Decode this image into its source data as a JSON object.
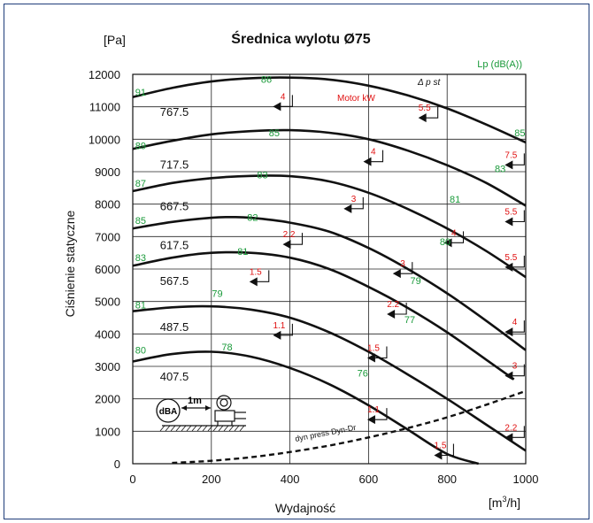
{
  "chart_data": {
    "type": "line",
    "title": "Średnica wylotu Ø75",
    "xlabel": "Wydajność",
    "ylabel": "Ciśnienie statyczne",
    "x_unit": "[m3/h]",
    "y_unit": "[Pa]",
    "xlim": [
      0,
      1000
    ],
    "ylim": [
      0,
      12000
    ],
    "x_ticks": [
      0,
      200,
      400,
      600,
      800,
      1000
    ],
    "y_ticks": [
      0,
      1000,
      2000,
      3000,
      4000,
      5000,
      6000,
      7000,
      8000,
      9000,
      10000,
      11000,
      12000
    ],
    "grid": true,
    "legend_lp": "Lp (dB(A))",
    "motor_label": "Motor  kW",
    "dp_label": "Δ p st",
    "dyn_label": "dyn press  Dyn-Dr",
    "inset": {
      "dba": "dBA",
      "distance": "1m"
    },
    "curve_labels": [
      "767.5",
      "717.5",
      "667.5",
      "617.5",
      "567.5",
      "487.5",
      "407.5"
    ],
    "series": [
      {
        "name": "767.5",
        "x": [
          0,
          100,
          200,
          300,
          400,
          500,
          600,
          700,
          800,
          900,
          1000
        ],
        "y": [
          11300,
          11580,
          11780,
          11880,
          11900,
          11840,
          11650,
          11350,
          10950,
          10450,
          9900
        ]
      },
      {
        "name": "717.5",
        "x": [
          0,
          100,
          200,
          300,
          400,
          500,
          600,
          700,
          800,
          900,
          1000
        ],
        "y": [
          9700,
          9950,
          10150,
          10250,
          10280,
          10200,
          10000,
          9650,
          9200,
          8650,
          7950
        ]
      },
      {
        "name": "667.5",
        "x": [
          0,
          100,
          200,
          300,
          400,
          500,
          600,
          700,
          800,
          900,
          1000
        ],
        "y": [
          8400,
          8650,
          8800,
          8870,
          8860,
          8700,
          8350,
          7850,
          7250,
          6550,
          5750
        ]
      },
      {
        "name": "617.5",
        "x": [
          0,
          100,
          200,
          250,
          300,
          400,
          500,
          600,
          700,
          800,
          900,
          1000
        ],
        "y": [
          7250,
          7450,
          7580,
          7600,
          7580,
          7430,
          7150,
          6650,
          6000,
          5250,
          4400,
          3500
        ]
      },
      {
        "name": "567.5",
        "x": [
          0,
          100,
          200,
          300,
          400,
          500,
          600,
          700,
          800,
          900,
          970
        ],
        "y": [
          6100,
          6350,
          6500,
          6500,
          6350,
          6000,
          5450,
          4800,
          4050,
          3200,
          2600
        ]
      },
      {
        "name": "487.5",
        "x": [
          0,
          100,
          200,
          300,
          400,
          500,
          600,
          700,
          800,
          900,
          1000
        ],
        "y": [
          4700,
          4820,
          4850,
          4750,
          4500,
          4050,
          3450,
          2750,
          2000,
          1200,
          400
        ]
      },
      {
        "name": "407.5",
        "x": [
          0,
          100,
          200,
          300,
          400,
          500,
          600,
          700,
          800,
          880
        ],
        "y": [
          3150,
          3380,
          3450,
          3300,
          2950,
          2450,
          1800,
          1050,
          300,
          0
        ]
      },
      {
        "name": "dyn press  Dyn-Dr",
        "x": [
          100,
          200,
          300,
          400,
          500,
          600,
          700,
          800,
          900,
          1000
        ],
        "y": [
          25,
          90,
          200,
          360,
          560,
          810,
          1100,
          1430,
          1820,
          2240
        ]
      }
    ],
    "sound_levels": [
      {
        "text": "91",
        "x": 20,
        "y": 11450
      },
      {
        "text": "86",
        "x": 340,
        "y": 11850
      },
      {
        "text": "85",
        "x": 360,
        "y": 10200
      },
      {
        "text": "85",
        "x": 985,
        "y": 10200
      },
      {
        "text": "89",
        "x": 20,
        "y": 9800
      },
      {
        "text": "83",
        "x": 330,
        "y": 8900
      },
      {
        "text": "83",
        "x": 935,
        "y": 9100
      },
      {
        "text": "87",
        "x": 20,
        "y": 8650
      },
      {
        "text": "82",
        "x": 305,
        "y": 7600
      },
      {
        "text": "81",
        "x": 820,
        "y": 8150
      },
      {
        "text": "85",
        "x": 20,
        "y": 7500
      },
      {
        "text": "81",
        "x": 280,
        "y": 6550
      },
      {
        "text": "80",
        "x": 795,
        "y": 6850
      },
      {
        "text": "83",
        "x": 20,
        "y": 6350
      },
      {
        "text": "79",
        "x": 215,
        "y": 5250
      },
      {
        "text": "79",
        "x": 720,
        "y": 5650
      },
      {
        "text": "81",
        "x": 20,
        "y": 4900
      },
      {
        "text": "77",
        "x": 705,
        "y": 4450
      },
      {
        "text": "80",
        "x": 20,
        "y": 3500
      },
      {
        "text": "78",
        "x": 240,
        "y": 3600
      },
      {
        "text": "76",
        "x": 585,
        "y": 2800
      }
    ],
    "motor_powers": [
      {
        "text": "4",
        "x": 395,
        "y": 11200
      },
      {
        "text": "5.5",
        "x": 765,
        "y": 10850
      },
      {
        "text": "4",
        "x": 625,
        "y": 9500
      },
      {
        "text": "7.5",
        "x": 985,
        "y": 9400
      },
      {
        "text": "3",
        "x": 575,
        "y": 8050
      },
      {
        "text": "5.5",
        "x": 985,
        "y": 7650
      },
      {
        "text": "2.2",
        "x": 420,
        "y": 6950
      },
      {
        "text": "4",
        "x": 830,
        "y": 7000
      },
      {
        "text": "1.5",
        "x": 335,
        "y": 5800
      },
      {
        "text": "3",
        "x": 700,
        "y": 6050
      },
      {
        "text": "5.5",
        "x": 985,
        "y": 6250
      },
      {
        "text": "2.2",
        "x": 685,
        "y": 4800
      },
      {
        "text": "4",
        "x": 985,
        "y": 4250
      },
      {
        "text": "1.1",
        "x": 395,
        "y": 4150
      },
      {
        "text": "1.5",
        "x": 635,
        "y": 3450
      },
      {
        "text": "3",
        "x": 985,
        "y": 2900
      },
      {
        "text": "1.1",
        "x": 635,
        "y": 1550
      },
      {
        "text": "2.2",
        "x": 985,
        "y": 1000
      },
      {
        "text": "1.5",
        "x": 805,
        "y": 450
      }
    ]
  }
}
